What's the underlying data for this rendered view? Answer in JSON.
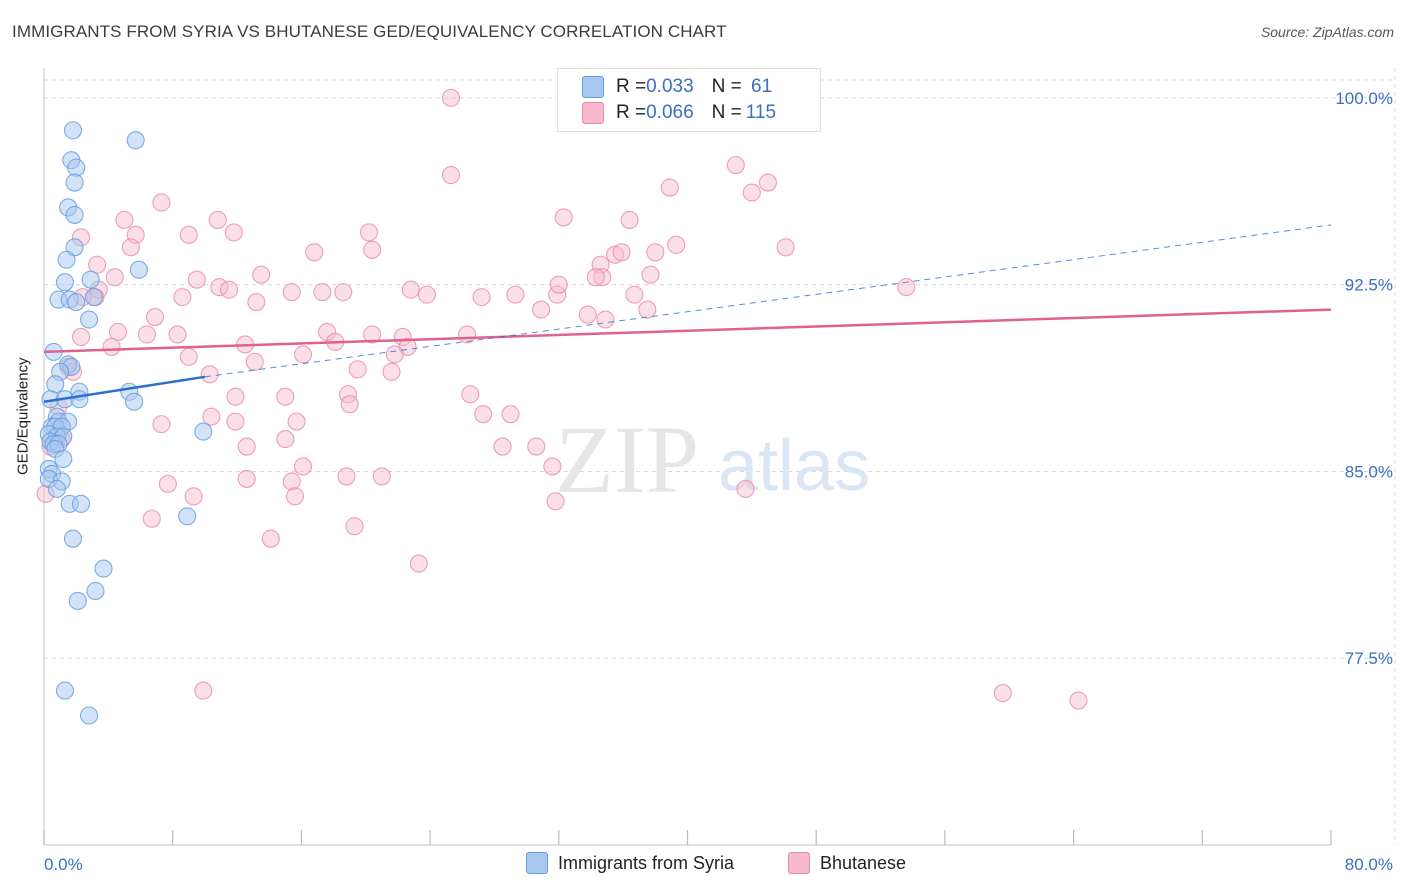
{
  "title": "IMMIGRANTS FROM SYRIA VS BHUTANESE GED/EQUIVALENCY CORRELATION CHART",
  "source": "Source: ZipAtlas.com",
  "watermark": {
    "zip": "ZIP",
    "atlas": "atlas"
  },
  "colors": {
    "blue_fill": "#a8c8f0",
    "blue_stroke": "#6a9ee0",
    "blue_line": "#2a6fd0",
    "pink_fill": "#f6b8cc",
    "pink_stroke": "#e88aa8",
    "pink_line": "#e06090",
    "axis_label": "#3a6fc4",
    "grid": "#d8d8d8"
  },
  "legend_top": {
    "rows": [
      {
        "r_label": "R = ",
        "r_value": "0.033",
        "n_label": "N = ",
        "n_value": " 61"
      },
      {
        "r_label": "R = ",
        "r_value": "0.066",
        "n_label": "N = ",
        "n_value": "115"
      }
    ]
  },
  "legend_bottom": {
    "items": [
      {
        "label": "Immigrants from Syria"
      },
      {
        "label": "Bhutanese"
      }
    ]
  },
  "chart_data": {
    "type": "scatter",
    "title": "IMMIGRANTS FROM SYRIA VS BHUTANESE GED/EQUIVALENCY CORRELATION CHART",
    "xlabel": "",
    "ylabel": "GED/Equivalency",
    "xlim": [
      0,
      80
    ],
    "ylim": [
      70.0,
      101.2
    ],
    "x_tick_labels": [
      {
        "value": 0,
        "label": "0.0%"
      },
      {
        "value": 80,
        "label": "80.0%"
      }
    ],
    "y_tick_labels": [
      {
        "value": 100.0,
        "label": "100.0%"
      },
      {
        "value": 92.5,
        "label": "92.5%"
      },
      {
        "value": 85.0,
        "label": "85.0%"
      },
      {
        "value": 77.5,
        "label": "77.5%"
      }
    ],
    "grid": true,
    "legend_position": "top-center",
    "series": [
      {
        "name": "Immigrants from Syria",
        "r": 0.033,
        "n": 61,
        "trend": {
          "x": [
            0,
            10
          ],
          "y": [
            87.8,
            88.8
          ],
          "dashed_extension": {
            "x": [
              10,
              80
            ],
            "y": [
              88.8,
              94.9
            ]
          }
        },
        "points": [
          [
            1.8,
            98.7
          ],
          [
            5.7,
            98.3
          ],
          [
            1.7,
            97.5
          ],
          [
            2.0,
            97.2
          ],
          [
            1.9,
            96.6
          ],
          [
            1.5,
            95.6
          ],
          [
            1.9,
            95.3
          ],
          [
            1.9,
            94.0
          ],
          [
            1.4,
            93.5
          ],
          [
            5.9,
            93.1
          ],
          [
            1.3,
            92.6
          ],
          [
            2.9,
            92.7
          ],
          [
            0.9,
            91.9
          ],
          [
            1.6,
            91.9
          ],
          [
            2.0,
            91.8
          ],
          [
            3.1,
            92.0
          ],
          [
            2.8,
            91.1
          ],
          [
            0.6,
            89.8
          ],
          [
            1.5,
            89.3
          ],
          [
            1.7,
            89.2
          ],
          [
            1.0,
            89.0
          ],
          [
            0.7,
            88.5
          ],
          [
            2.2,
            88.2
          ],
          [
            5.3,
            88.2
          ],
          [
            0.4,
            87.9
          ],
          [
            1.3,
            87.9
          ],
          [
            2.2,
            87.9
          ],
          [
            5.6,
            87.8
          ],
          [
            0.8,
            87.2
          ],
          [
            0.9,
            87.0
          ],
          [
            1.5,
            87.0
          ],
          [
            0.5,
            86.8
          ],
          [
            0.7,
            86.8
          ],
          [
            1.1,
            86.8
          ],
          [
            0.3,
            86.5
          ],
          [
            0.8,
            86.4
          ],
          [
            1.2,
            86.4
          ],
          [
            0.4,
            86.2
          ],
          [
            0.6,
            86.1
          ],
          [
            0.9,
            86.1
          ],
          [
            0.7,
            85.9
          ],
          [
            1.2,
            85.5
          ],
          [
            0.3,
            85.1
          ],
          [
            0.5,
            84.9
          ],
          [
            0.3,
            84.7
          ],
          [
            1.1,
            84.6
          ],
          [
            0.8,
            84.3
          ],
          [
            1.6,
            83.7
          ],
          [
            2.3,
            83.7
          ],
          [
            8.9,
            83.2
          ],
          [
            9.9,
            86.6
          ],
          [
            1.8,
            82.3
          ],
          [
            3.7,
            81.1
          ],
          [
            3.2,
            80.2
          ],
          [
            2.1,
            79.8
          ],
          [
            1.3,
            76.2
          ],
          [
            2.8,
            75.2
          ]
        ]
      },
      {
        "name": "Bhutanese",
        "r": 0.066,
        "n": 115,
        "trend": {
          "x": [
            0,
            80
          ],
          "y": [
            89.8,
            91.5
          ]
        },
        "points": [
          [
            25.3,
            100.0
          ],
          [
            43.2,
            100.0
          ],
          [
            43.0,
            97.3
          ],
          [
            25.3,
            96.9
          ],
          [
            38.9,
            96.4
          ],
          [
            44.0,
            96.2
          ],
          [
            45.0,
            96.6
          ],
          [
            7.3,
            95.8
          ],
          [
            5.0,
            95.1
          ],
          [
            10.8,
            95.1
          ],
          [
            32.3,
            95.2
          ],
          [
            36.4,
            95.1
          ],
          [
            2.3,
            94.4
          ],
          [
            9.0,
            94.5
          ],
          [
            11.8,
            94.6
          ],
          [
            5.7,
            94.5
          ],
          [
            20.2,
            94.6
          ],
          [
            5.4,
            94.0
          ],
          [
            16.8,
            93.8
          ],
          [
            20.4,
            93.9
          ],
          [
            35.5,
            93.7
          ],
          [
            35.9,
            93.8
          ],
          [
            38.0,
            93.8
          ],
          [
            39.3,
            94.1
          ],
          [
            46.1,
            94.0
          ],
          [
            3.3,
            93.3
          ],
          [
            34.6,
            93.3
          ],
          [
            4.4,
            92.8
          ],
          [
            9.5,
            92.7
          ],
          [
            13.5,
            92.9
          ],
          [
            34.7,
            92.8
          ],
          [
            37.7,
            92.9
          ],
          [
            34.3,
            92.8
          ],
          [
            10.9,
            92.4
          ],
          [
            11.5,
            92.3
          ],
          [
            3.2,
            92.0
          ],
          [
            3.4,
            92.3
          ],
          [
            15.4,
            92.2
          ],
          [
            17.3,
            92.2
          ],
          [
            18.6,
            92.2
          ],
          [
            22.8,
            92.3
          ],
          [
            23.8,
            92.1
          ],
          [
            27.2,
            92.0
          ],
          [
            29.3,
            92.1
          ],
          [
            31.9,
            92.1
          ],
          [
            36.7,
            92.1
          ],
          [
            32.0,
            92.5
          ],
          [
            53.6,
            92.4
          ],
          [
            2.4,
            92.0
          ],
          [
            8.6,
            92.0
          ],
          [
            13.2,
            91.8
          ],
          [
            30.9,
            91.5
          ],
          [
            33.8,
            91.3
          ],
          [
            34.9,
            91.1
          ],
          [
            37.5,
            91.5
          ],
          [
            6.9,
            91.2
          ],
          [
            4.6,
            90.6
          ],
          [
            2.3,
            90.4
          ],
          [
            6.4,
            90.5
          ],
          [
            8.3,
            90.5
          ],
          [
            17.6,
            90.6
          ],
          [
            18.1,
            90.2
          ],
          [
            20.4,
            90.5
          ],
          [
            22.3,
            90.4
          ],
          [
            26.3,
            90.5
          ],
          [
            12.5,
            90.1
          ],
          [
            22.6,
            90.0
          ],
          [
            4.2,
            90.0
          ],
          [
            16.1,
            89.7
          ],
          [
            21.8,
            89.7
          ],
          [
            9.0,
            89.6
          ],
          [
            13.1,
            89.4
          ],
          [
            1.5,
            89.2
          ],
          [
            1.8,
            89.0
          ],
          [
            19.5,
            89.1
          ],
          [
            21.6,
            89.0
          ],
          [
            10.3,
            88.9
          ],
          [
            15.0,
            88.0
          ],
          [
            18.9,
            88.1
          ],
          [
            26.5,
            88.1
          ],
          [
            11.9,
            88.0
          ],
          [
            19.0,
            87.7
          ],
          [
            0.9,
            87.6
          ],
          [
            10.4,
            87.2
          ],
          [
            27.3,
            87.3
          ],
          [
            29.0,
            87.3
          ],
          [
            11.9,
            87.0
          ],
          [
            15.7,
            87.0
          ],
          [
            7.3,
            86.9
          ],
          [
            0.9,
            86.5
          ],
          [
            1.1,
            86.3
          ],
          [
            15.0,
            86.3
          ],
          [
            12.6,
            86.0
          ],
          [
            28.5,
            86.0
          ],
          [
            30.6,
            86.0
          ],
          [
            0.4,
            86.0
          ],
          [
            16.1,
            85.2
          ],
          [
            18.8,
            84.8
          ],
          [
            21.0,
            84.8
          ],
          [
            15.4,
            84.6
          ],
          [
            12.6,
            84.7
          ],
          [
            31.6,
            85.2
          ],
          [
            7.7,
            84.5
          ],
          [
            9.3,
            84.0
          ],
          [
            15.6,
            84.0
          ],
          [
            43.6,
            84.3
          ],
          [
            31.8,
            83.8
          ],
          [
            6.7,
            83.1
          ],
          [
            19.3,
            82.8
          ],
          [
            14.1,
            82.3
          ],
          [
            23.3,
            81.3
          ],
          [
            9.9,
            76.2
          ],
          [
            59.6,
            76.1
          ],
          [
            64.3,
            75.8
          ],
          [
            0.1,
            84.1
          ]
        ]
      }
    ]
  }
}
